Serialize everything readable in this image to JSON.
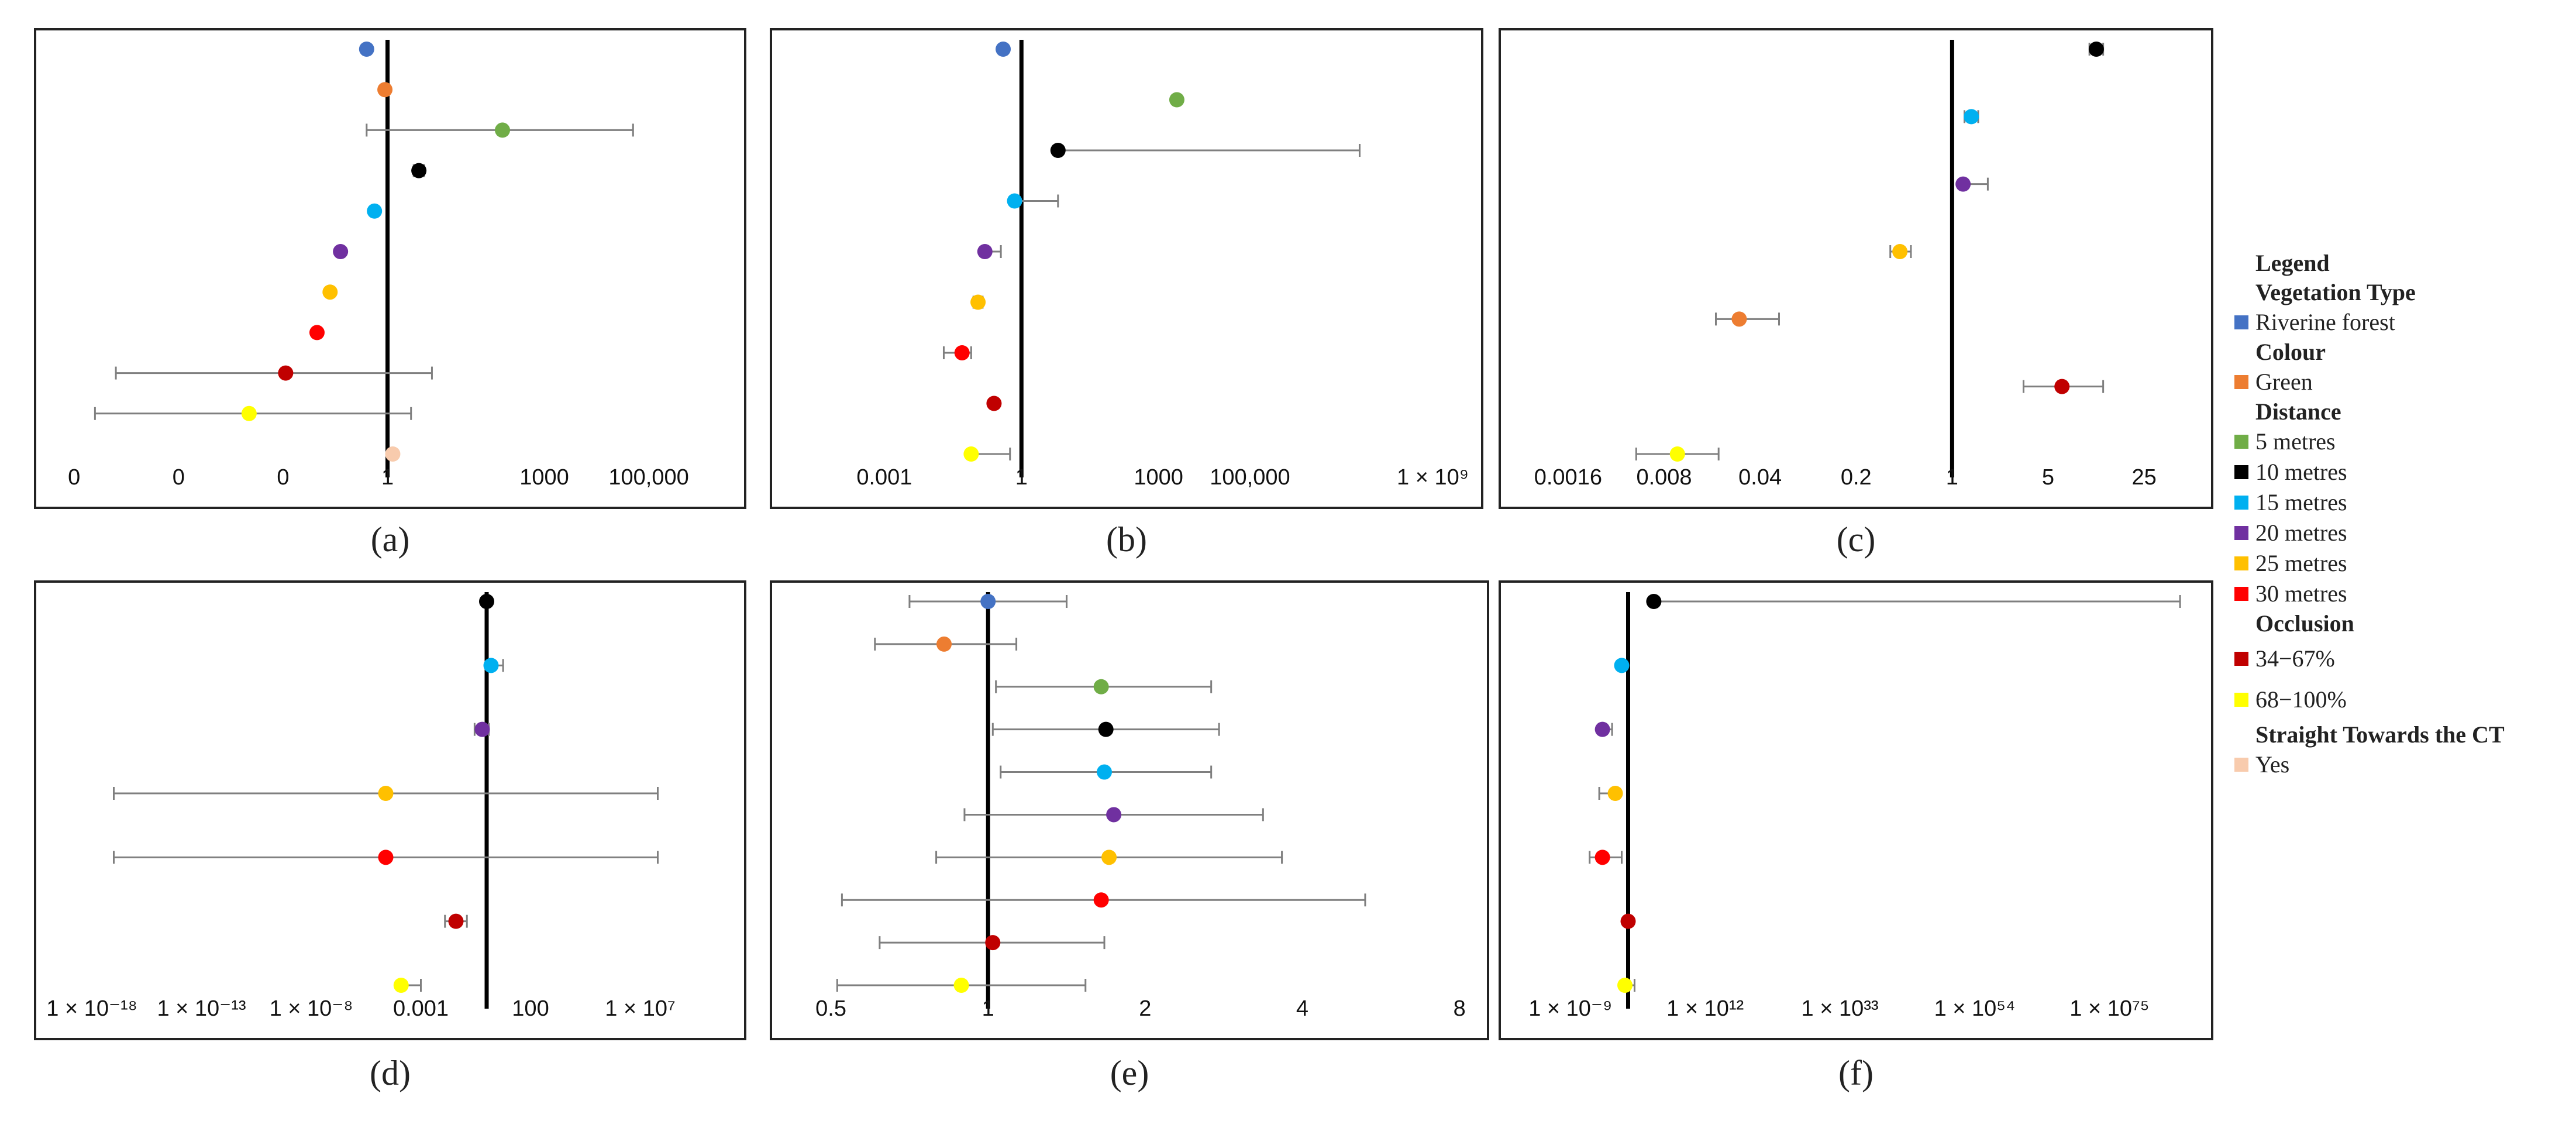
{
  "legend": {
    "title": "Legend",
    "groups": [
      {
        "heading": "Vegetation Type",
        "items": [
          {
            "label": "Riverine forest",
            "color": "#4472C4"
          }
        ]
      },
      {
        "heading": "Colour",
        "items": [
          {
            "label": "Green",
            "color": "#ED7D31"
          }
        ]
      },
      {
        "heading": "Distance",
        "items": [
          {
            "label": "5 metres",
            "color": "#70AD47"
          },
          {
            "label": "10 metres",
            "color": "#000000"
          },
          {
            "label": "15 metres",
            "color": "#00B0F0"
          },
          {
            "label": "20 metres",
            "color": "#7030A0"
          },
          {
            "label": "25 metres",
            "color": "#FFC000"
          },
          {
            "label": "30 metres",
            "color": "#FF0000"
          }
        ]
      },
      {
        "heading": "Occlusion",
        "items": [
          {
            "label": "34−67%",
            "color": "#C00000"
          },
          {
            "label": "68−100%",
            "color": "#FFFF00"
          }
        ]
      },
      {
        "heading": "Straight Towards the CT",
        "items": [
          {
            "label": "Yes",
            "color": "#F8CBAD"
          }
        ]
      }
    ]
  },
  "chart_data": [
    {
      "type": "scatter",
      "panel_label": "(a)",
      "scale": "log10",
      "xlim_log": [
        -6.5,
        6.6
      ],
      "reference_line_log": 0,
      "tick_labels": [
        {
          "log": -6,
          "label": "0"
        },
        {
          "log": -4,
          "label": "0"
        },
        {
          "log": -2,
          "label": "0"
        },
        {
          "log": 0,
          "label": "1"
        },
        {
          "log": 3,
          "label": "1000"
        },
        {
          "log": 5,
          "label": "100,000"
        }
      ],
      "points": [
        {
          "category": "Riverine forest",
          "color": "#4472C4",
          "est_log": -0.4
        },
        {
          "category": "Green",
          "color": "#ED7D31",
          "est_log": -0.05
        },
        {
          "category": "5 metres",
          "color": "#70AD47",
          "est_log": 2.2,
          "lo_log": -0.4,
          "hi_log": 4.7
        },
        {
          "category": "10 metres",
          "color": "#000000",
          "est_log": 0.6,
          "lo_log": 0.5,
          "hi_log": 0.7
        },
        {
          "category": "15 metres",
          "color": "#00B0F0",
          "est_log": -0.25
        },
        {
          "category": "20 metres",
          "color": "#7030A0",
          "est_log": -0.9
        },
        {
          "category": "25 metres",
          "color": "#FFC000",
          "est_log": -1.1
        },
        {
          "category": "30 metres",
          "color": "#FF0000",
          "est_log": -1.35
        },
        {
          "category": "34−67%",
          "color": "#C00000",
          "est_log": -1.95,
          "lo_log": -5.2,
          "hi_log": 0.85
        },
        {
          "category": "68−100%",
          "color": "#FFFF00",
          "est_log": -2.65,
          "lo_log": -5.6,
          "hi_log": 0.45
        },
        {
          "category": "Yes",
          "color": "#F8CBAD",
          "est_log": 0.1
        }
      ]
    },
    {
      "type": "scatter",
      "panel_label": "(b)",
      "scale": "log10",
      "xlim_log": [
        -5.2,
        9.8
      ],
      "reference_line_log": 0,
      "tick_labels": [
        {
          "log": -3,
          "label": "0.001"
        },
        {
          "log": 0,
          "label": "1"
        },
        {
          "log": 3,
          "label": "1000"
        },
        {
          "log": 5,
          "label": "100,000"
        },
        {
          "log": 9,
          "label": "1 × 10⁹"
        }
      ],
      "points": [
        {
          "category": "Riverine forest",
          "color": "#4472C4",
          "est_log": -0.4
        },
        {
          "category": "5 metres",
          "color": "#70AD47",
          "est_log": 3.4
        },
        {
          "category": "10 metres",
          "color": "#000000",
          "est_log": 0.8,
          "lo_log": 0.8,
          "hi_log": 7.4
        },
        {
          "category": "15 metres",
          "color": "#00B0F0",
          "est_log": -0.15,
          "lo_log": -0.15,
          "hi_log": 0.8
        },
        {
          "category": "20 metres",
          "color": "#7030A0",
          "est_log": -0.8,
          "lo_log": -0.8,
          "hi_log": -0.45
        },
        {
          "category": "25 metres",
          "color": "#FFC000",
          "est_log": -0.95,
          "lo_log": -1.05,
          "hi_log": -0.85
        },
        {
          "category": "30 metres",
          "color": "#FF0000",
          "est_log": -1.3,
          "lo_log": -1.7,
          "hi_log": -1.1
        },
        {
          "category": "34−67%",
          "color": "#C00000",
          "est_log": -0.6
        },
        {
          "category": "68−100%",
          "color": "#FFFF00",
          "est_log": -1.1,
          "lo_log": -1.1,
          "hi_log": -0.25
        }
      ]
    },
    {
      "type": "scatter",
      "panel_label": "(c)",
      "scale": "log10",
      "xlim_log": [
        -3.2,
        1.8
      ],
      "reference_line_log": 0,
      "tick_labels": [
        {
          "log": -2.796,
          "label": "0.0016"
        },
        {
          "log": -2.097,
          "label": "0.008"
        },
        {
          "log": -1.398,
          "label": "0.04"
        },
        {
          "log": -0.699,
          "label": "0.2"
        },
        {
          "log": 0,
          "label": "1"
        },
        {
          "log": 0.699,
          "label": "5"
        },
        {
          "log": 1.398,
          "label": "25"
        }
      ],
      "points": [
        {
          "category": "10 metres",
          "color": "#000000",
          "est_log": 1.05,
          "lo_log": 1.0,
          "hi_log": 1.1
        },
        {
          "category": "15 metres",
          "color": "#00B0F0",
          "est_log": 0.14,
          "lo_log": 0.09,
          "hi_log": 0.19
        },
        {
          "category": "20 metres",
          "color": "#7030A0",
          "est_log": 0.08,
          "lo_log": 0.08,
          "hi_log": 0.26
        },
        {
          "category": "25 metres",
          "color": "#FFC000",
          "est_log": -0.38,
          "lo_log": -0.45,
          "hi_log": -0.3
        },
        {
          "category": "Green",
          "color": "#ED7D31",
          "est_log": -1.55,
          "lo_log": -1.72,
          "hi_log": -1.26
        },
        {
          "category": "34−67%",
          "color": "#C00000",
          "est_log": 0.8,
          "lo_log": 0.52,
          "hi_log": 1.1
        },
        {
          "category": "68−100%",
          "color": "#FFFF00",
          "est_log": -2.0,
          "lo_log": -2.3,
          "hi_log": -1.7
        }
      ]
    },
    {
      "type": "scatter",
      "panel_label": "(d)",
      "scale": "log10",
      "xlim_log": [
        -20.0,
        11.2
      ],
      "reference_line_log": 0,
      "tick_labels": [
        {
          "log": -18,
          "label": "1 × 10⁻¹⁸"
        },
        {
          "log": -13,
          "label": "1 × 10⁻¹³"
        },
        {
          "log": -8,
          "label": "1 × 10⁻⁸"
        },
        {
          "log": -3,
          "label": "0.001"
        },
        {
          "log": 2,
          "label": "100"
        },
        {
          "log": 7,
          "label": "1 × 10⁷"
        }
      ],
      "points": [
        {
          "category": "10 metres",
          "color": "#000000",
          "est_log": 0
        },
        {
          "category": "15 metres",
          "color": "#00B0F0",
          "est_log": 0.2,
          "lo_log": 0.2,
          "hi_log": 0.75
        },
        {
          "category": "20 metres",
          "color": "#7030A0",
          "est_log": -0.2,
          "lo_log": -0.55,
          "hi_log": 0.1
        },
        {
          "category": "25 metres",
          "color": "#FFC000",
          "est_log": -4.6,
          "lo_log": -17.0,
          "hi_log": 7.8
        },
        {
          "category": "30 metres",
          "color": "#FF0000",
          "est_log": -4.6,
          "lo_log": -17.0,
          "hi_log": 7.8
        },
        {
          "category": "34−67%",
          "color": "#C00000",
          "est_log": -1.4,
          "lo_log": -1.9,
          "hi_log": -0.9
        },
        {
          "category": "68−100%",
          "color": "#FFFF00",
          "est_log": -3.9,
          "lo_log": -3.9,
          "hi_log": -3.0
        }
      ]
    },
    {
      "type": "scatter",
      "panel_label": "(e)",
      "scale": "log2",
      "xlim_log": [
        -1.3,
        3.1
      ],
      "reference_line_log": 0,
      "tick_labels": [
        {
          "log": -1,
          "label": "0.5"
        },
        {
          "log": 0,
          "label": "1"
        },
        {
          "log": 1,
          "label": "2"
        },
        {
          "log": 2,
          "label": "4"
        },
        {
          "log": 3,
          "label": "8"
        }
      ],
      "points": [
        {
          "category": "Riverine forest",
          "color": "#4472C4",
          "est_log": 0,
          "lo_log": -0.5,
          "hi_log": 0.5
        },
        {
          "category": "Green",
          "color": "#ED7D31",
          "est_log": -0.28,
          "lo_log": -0.72,
          "hi_log": 0.18
        },
        {
          "category": "5 metres",
          "color": "#70AD47",
          "est_log": 0.72,
          "lo_log": 0.05,
          "hi_log": 1.42
        },
        {
          "category": "10 metres",
          "color": "#000000",
          "est_log": 0.75,
          "lo_log": 0.03,
          "hi_log": 1.47
        },
        {
          "category": "15 metres",
          "color": "#00B0F0",
          "est_log": 0.74,
          "lo_log": 0.08,
          "hi_log": 1.42
        },
        {
          "category": "20 metres",
          "color": "#7030A0",
          "est_log": 0.8,
          "lo_log": -0.15,
          "hi_log": 1.75
        },
        {
          "category": "25 metres",
          "color": "#FFC000",
          "est_log": 0.77,
          "lo_log": -0.33,
          "hi_log": 1.87
        },
        {
          "category": "30 metres",
          "color": "#FF0000",
          "est_log": 0.72,
          "lo_log": -0.93,
          "hi_log": 2.4
        },
        {
          "category": "34−67%",
          "color": "#C00000",
          "est_log": 0.03,
          "lo_log": -0.69,
          "hi_log": 0.74
        },
        {
          "category": "68−100%",
          "color": "#FFFF00",
          "est_log": -0.17,
          "lo_log": -0.96,
          "hi_log": 0.62
        }
      ]
    },
    {
      "type": "scatter",
      "panel_label": "(f)",
      "scale": "log10",
      "xlim_log": [
        -18.0,
        89.0
      ],
      "reference_line_log": 0,
      "tick_labels": [
        {
          "log": -9,
          "label": "1 × 10⁻⁹"
        },
        {
          "log": 12,
          "label": "1 × 10¹²"
        },
        {
          "log": 33,
          "label": "1 × 10³³"
        },
        {
          "log": 54,
          "label": "1 × 10⁵⁴"
        },
        {
          "log": 75,
          "label": "1 × 10⁷⁵"
        }
      ],
      "points": [
        {
          "category": "10 metres",
          "color": "#000000",
          "est_log": 4.0,
          "lo_log": 4.0,
          "hi_log": 86.0
        },
        {
          "category": "15 metres",
          "color": "#00B0F0",
          "est_log": -1.0
        },
        {
          "category": "20 metres",
          "color": "#7030A0",
          "est_log": -4.0,
          "lo_log": -4.5,
          "hi_log": -2.5
        },
        {
          "category": "25 metres",
          "color": "#FFC000",
          "est_log": -2.0,
          "lo_log": -4.5,
          "hi_log": -2.0
        },
        {
          "category": "30 metres",
          "color": "#FF0000",
          "est_log": -4.0,
          "lo_log": -6.0,
          "hi_log": -1.0
        },
        {
          "category": "34−67%",
          "color": "#C00000",
          "est_log": 0
        },
        {
          "category": "68−100%",
          "color": "#FFFF00",
          "est_log": -0.5,
          "lo_log": -0.5,
          "hi_log": 1.0
        }
      ]
    }
  ]
}
